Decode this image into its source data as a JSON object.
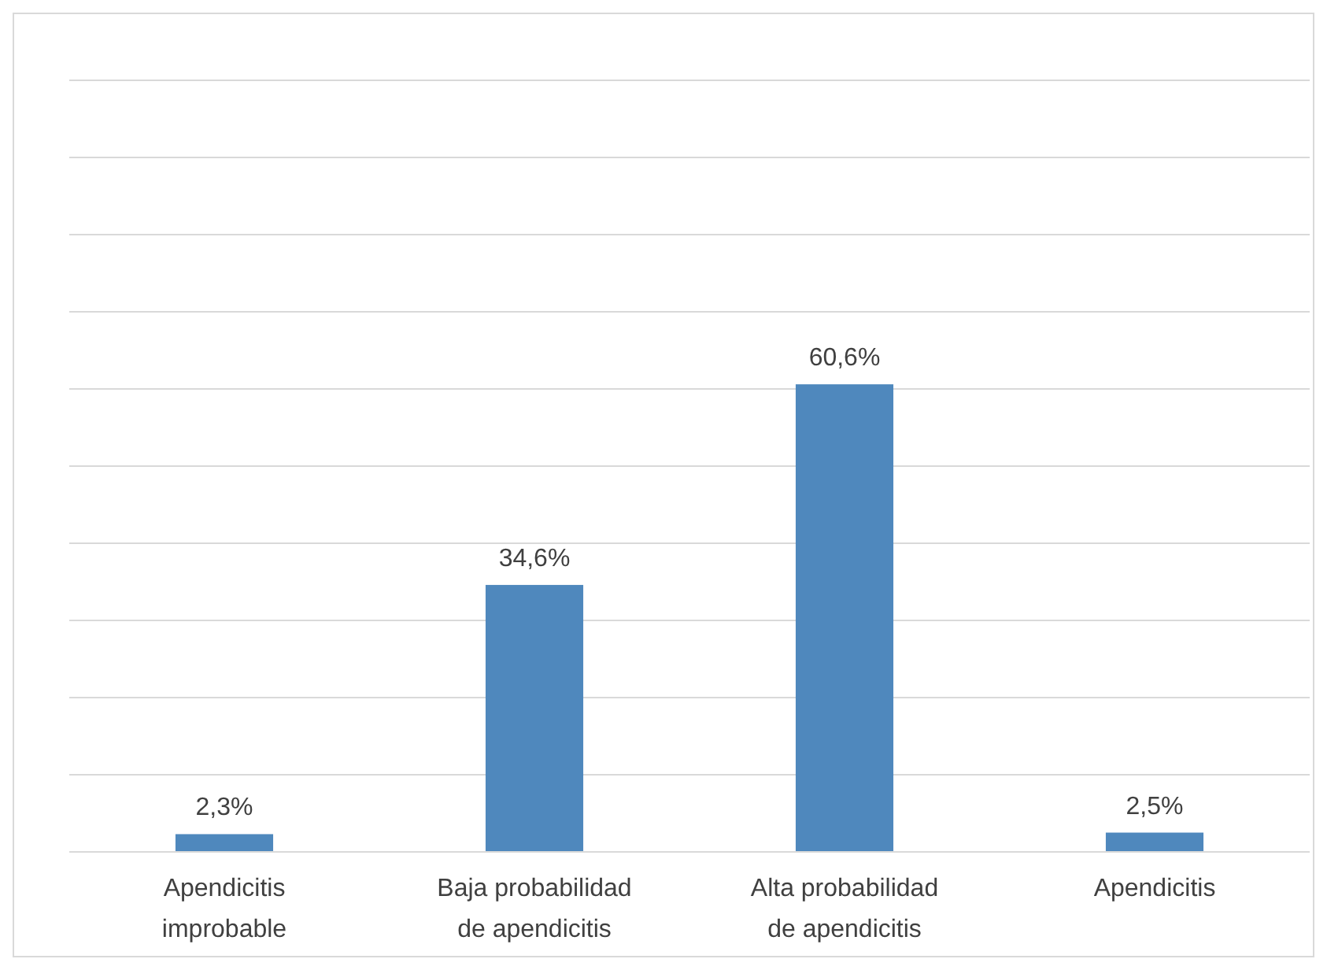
{
  "chart_data": {
    "type": "bar",
    "categories": [
      "Apendicitis improbable",
      "Baja probabilidad de apendicitis",
      "Alta probabilidad de apendicitis",
      "Apendicitis"
    ],
    "values": [
      2.3,
      34.6,
      60.6,
      2.5
    ],
    "value_labels": [
      "2,3%",
      "34,6%",
      "60,6%",
      "2,5%"
    ],
    "color": "#4f88bd",
    "ylim": [
      0,
      100
    ],
    "yticks": [
      {
        "value": 0,
        "label": null
      },
      {
        "value": 10,
        "label": null
      },
      {
        "value": 20,
        "label": null
      },
      {
        "value": 30,
        "label": null
      },
      {
        "value": 40,
        "label": null
      },
      {
        "value": 50,
        "label": null
      },
      {
        "value": 60,
        "label": null
      },
      {
        "value": 70,
        "label": null
      },
      {
        "value": 80,
        "label": null
      },
      {
        "value": 90,
        "label": null
      },
      {
        "value": 100,
        "label": null
      }
    ],
    "grid": "y",
    "tick_labels": "x"
  }
}
